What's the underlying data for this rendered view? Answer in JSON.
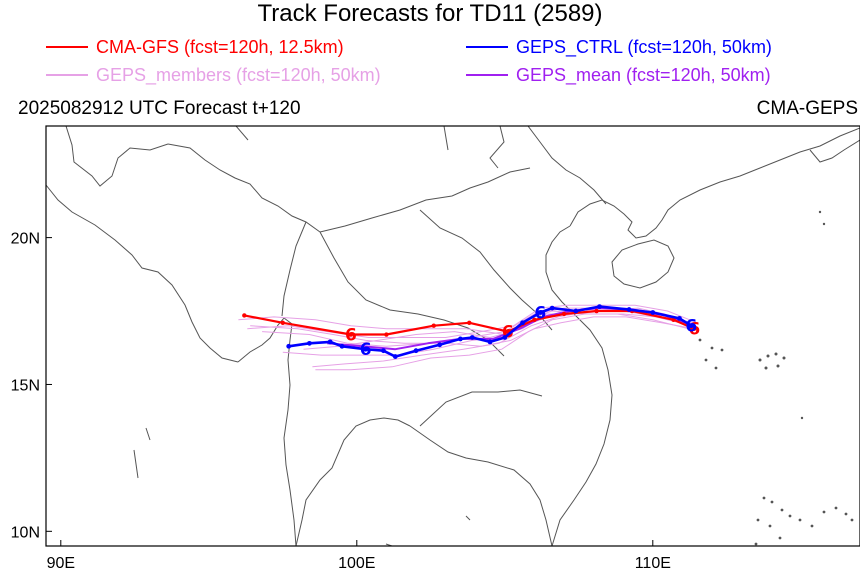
{
  "title": "Track Forecasts for TD11 (2589)",
  "subtitle_left": "2025082912 UTC Forecast t+120",
  "subtitle_right": "CMA-GEPS",
  "legend": [
    {
      "label": "CMA-GFS (fcst=120h, 12.5km)",
      "color": "#ff0000"
    },
    {
      "label": "GEPS_CTRL (fcst=120h, 50km)",
      "color": "#0000ff"
    },
    {
      "label": "GEPS_members (fcst=120h, 50km)",
      "color": "#e6a1e6"
    },
    {
      "label": "GEPS_mean (fcst=120h, 50km)",
      "color": "#a020f0"
    }
  ],
  "axes": {
    "lon_ticks": [
      {
        "value": 90,
        "label": "90E"
      },
      {
        "value": 100,
        "label": "100E"
      },
      {
        "value": 110,
        "label": "110E"
      }
    ],
    "lat_ticks": [
      {
        "value": 10,
        "label": "10N"
      },
      {
        "value": 15,
        "label": "15N"
      },
      {
        "value": 20,
        "label": "20N"
      }
    ],
    "lon_range": [
      89.5,
      117.0
    ],
    "lat_range": [
      9.5,
      23.8
    ]
  },
  "tracks": {
    "cma_gfs": {
      "color": "#ff0000",
      "points": [
        [
          111.4,
          16.9
        ],
        [
          110.7,
          17.2
        ],
        [
          109.3,
          17.5
        ],
        [
          108.1,
          17.5
        ],
        [
          107.0,
          17.4
        ],
        [
          106.0,
          17.2
        ],
        [
          105.1,
          16.8
        ],
        [
          103.8,
          17.1
        ],
        [
          102.6,
          17.0
        ],
        [
          101.0,
          16.7
        ],
        [
          99.8,
          16.7
        ],
        [
          97.5,
          17.1
        ],
        [
          96.2,
          17.35
        ]
      ]
    },
    "geps_ctrl": {
      "color": "#0000ff",
      "points": [
        [
          111.3,
          17.0
        ],
        [
          110.9,
          17.25
        ],
        [
          110.0,
          17.45
        ],
        [
          109.2,
          17.55
        ],
        [
          108.2,
          17.65
        ],
        [
          107.4,
          17.5
        ],
        [
          106.6,
          17.6
        ],
        [
          106.2,
          17.45
        ],
        [
          105.6,
          17.1
        ],
        [
          105.0,
          16.6
        ],
        [
          104.5,
          16.45
        ],
        [
          103.9,
          16.6
        ],
        [
          103.5,
          16.55
        ],
        [
          102.8,
          16.35
        ],
        [
          102.0,
          16.15
        ],
        [
          101.3,
          15.95
        ],
        [
          100.9,
          16.15
        ],
        [
          100.3,
          16.2
        ],
        [
          99.5,
          16.3
        ],
        [
          99.1,
          16.45
        ],
        [
          98.4,
          16.4
        ],
        [
          97.7,
          16.3
        ]
      ]
    },
    "geps_mean": {
      "color": "#a020f0",
      "points": [
        [
          111.4,
          17.0
        ],
        [
          110.4,
          17.35
        ],
        [
          109.3,
          17.55
        ],
        [
          108.2,
          17.6
        ],
        [
          107.2,
          17.5
        ],
        [
          106.3,
          17.3
        ],
        [
          105.5,
          16.9
        ],
        [
          104.6,
          16.55
        ],
        [
          103.5,
          16.55
        ],
        [
          102.4,
          16.4
        ],
        [
          101.3,
          16.2
        ],
        [
          100.2,
          16.3
        ],
        [
          99.0,
          16.4
        ]
      ]
    },
    "geps_members": {
      "color": "#e6a1e6",
      "tracks": [
        [
          [
            111.3,
            17.0
          ],
          [
            110.3,
            17.4
          ],
          [
            109.2,
            17.6
          ],
          [
            108.0,
            17.6
          ],
          [
            107.0,
            17.6
          ],
          [
            106.0,
            17.4
          ],
          [
            105.0,
            16.8
          ],
          [
            103.8,
            16.6
          ],
          [
            102.5,
            16.4
          ],
          [
            101.0,
            16.3
          ],
          [
            99.7,
            16.4
          ],
          [
            98.4,
            16.7
          ],
          [
            96.8,
            16.8
          ]
        ],
        [
          [
            111.4,
            17.1
          ],
          [
            110.2,
            17.3
          ],
          [
            109.0,
            17.5
          ],
          [
            107.9,
            17.5
          ],
          [
            106.8,
            17.3
          ],
          [
            105.9,
            17.0
          ],
          [
            104.8,
            16.4
          ],
          [
            103.6,
            16.2
          ],
          [
            102.2,
            16.0
          ],
          [
            100.9,
            15.8
          ],
          [
            99.6,
            15.7
          ],
          [
            98.5,
            15.6
          ]
        ],
        [
          [
            111.2,
            16.9
          ],
          [
            110.0,
            17.2
          ],
          [
            108.8,
            17.4
          ],
          [
            107.7,
            17.4
          ],
          [
            106.6,
            17.2
          ],
          [
            105.8,
            16.8
          ],
          [
            104.9,
            16.2
          ],
          [
            103.8,
            16.0
          ],
          [
            102.5,
            15.9
          ],
          [
            101.2,
            15.6
          ],
          [
            99.8,
            15.5
          ],
          [
            98.6,
            15.5
          ]
        ],
        [
          [
            111.5,
            17.1
          ],
          [
            110.5,
            17.5
          ],
          [
            109.4,
            17.7
          ],
          [
            108.2,
            17.7
          ],
          [
            107.1,
            17.7
          ],
          [
            106.2,
            17.6
          ],
          [
            105.3,
            17.0
          ],
          [
            104.2,
            16.8
          ],
          [
            103.0,
            16.6
          ],
          [
            101.7,
            16.6
          ],
          [
            100.4,
            16.6
          ],
          [
            99.0,
            16.8
          ],
          [
            97.7,
            17.0
          ],
          [
            96.3,
            16.9
          ]
        ],
        [
          [
            111.3,
            17.0
          ],
          [
            110.1,
            17.3
          ],
          [
            109.0,
            17.4
          ],
          [
            107.8,
            17.4
          ],
          [
            106.6,
            17.5
          ],
          [
            105.7,
            17.2
          ],
          [
            104.9,
            16.6
          ],
          [
            103.9,
            16.5
          ],
          [
            102.6,
            16.2
          ],
          [
            101.4,
            16.0
          ],
          [
            100.0,
            16.0
          ],
          [
            98.8,
            16.0
          ],
          [
            97.5,
            16.1
          ]
        ],
        [
          [
            111.4,
            16.9
          ],
          [
            110.3,
            17.1
          ],
          [
            109.1,
            17.3
          ],
          [
            108.0,
            17.3
          ],
          [
            106.9,
            17.1
          ],
          [
            106.0,
            16.9
          ],
          [
            105.2,
            16.5
          ],
          [
            104.2,
            16.3
          ],
          [
            103.0,
            16.4
          ],
          [
            101.6,
            16.4
          ],
          [
            100.3,
            16.5
          ],
          [
            99.2,
            16.7
          ],
          [
            98.0,
            16.9
          ],
          [
            96.4,
            17.0
          ]
        ],
        [
          [
            111.3,
            17.1
          ],
          [
            110.4,
            17.4
          ],
          [
            109.5,
            17.6
          ],
          [
            108.4,
            17.5
          ],
          [
            107.3,
            17.4
          ],
          [
            106.4,
            17.4
          ],
          [
            105.6,
            16.9
          ],
          [
            104.5,
            16.6
          ],
          [
            103.3,
            16.8
          ],
          [
            102.0,
            16.7
          ],
          [
            100.7,
            16.5
          ],
          [
            99.4,
            16.3
          ],
          [
            98.2,
            16.2
          ]
        ],
        [
          [
            111.2,
            17.0
          ],
          [
            110.0,
            17.4
          ],
          [
            108.9,
            17.6
          ],
          [
            107.8,
            17.6
          ],
          [
            106.8,
            17.4
          ],
          [
            105.9,
            17.1
          ],
          [
            105.0,
            16.7
          ],
          [
            103.7,
            16.9
          ],
          [
            102.3,
            16.9
          ],
          [
            101.0,
            16.9
          ],
          [
            99.8,
            17.0
          ],
          [
            98.6,
            17.2
          ],
          [
            97.2,
            17.3
          ],
          [
            96.0,
            17.2
          ]
        ]
      ]
    }
  }
}
